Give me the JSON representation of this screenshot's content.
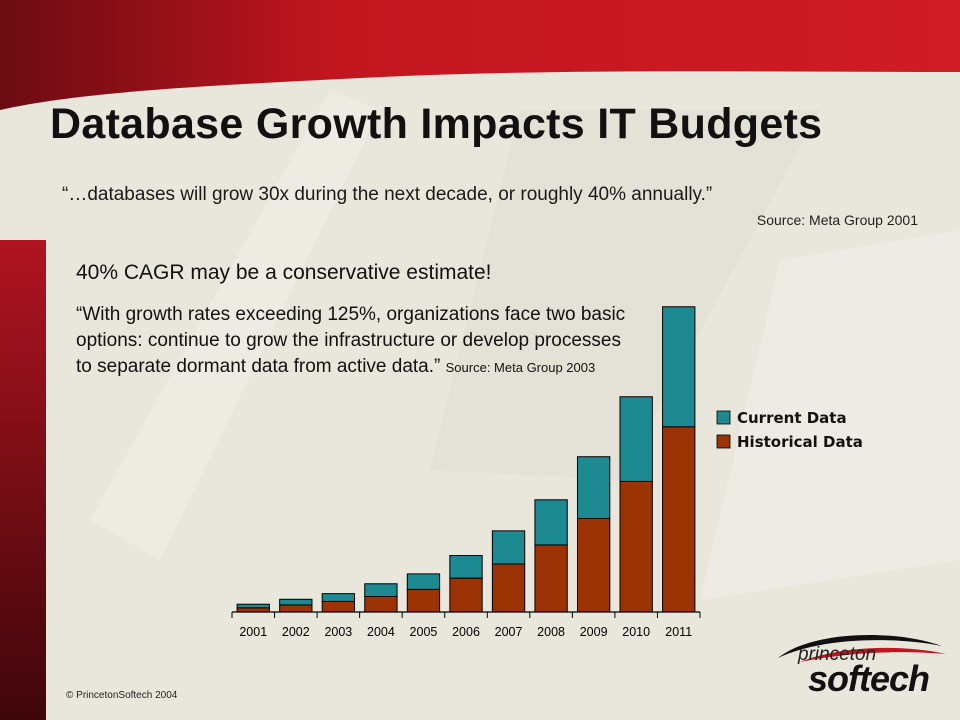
{
  "slide": {
    "title": "Database Growth Impacts IT Budgets",
    "quote1": "“…databases will grow 30x during the next decade, or roughly 40% annually.”",
    "source1": "Source: Meta Group 2001",
    "subhead": "40% CAGR may be a conservative estimate!",
    "quote2": "“With growth rates exceeding 125%, organizations face two basic options: continue to grow the infrastructure or develop processes to separate dormant data from active data.”",
    "source2": "Source: Meta Group 2003",
    "copyright": "© PrincetonSoftech 2004",
    "logo_top": "princeton",
    "logo_bottom": "softech"
  },
  "colors": {
    "band": "#c2161f",
    "band_dark": "#5e0a10",
    "current": "#1d8a91",
    "historical": "#9c3305"
  },
  "chart_data": {
    "type": "bar",
    "stacked": true,
    "categories": [
      "2001",
      "2002",
      "2003",
      "2004",
      "2005",
      "2006",
      "2007",
      "2008",
      "2009",
      "2010",
      "2011"
    ],
    "series": [
      {
        "name": "Historical Data",
        "color": "#9c3305",
        "values": [
          1.2,
          2.0,
          3.0,
          4.4,
          6.4,
          9.6,
          13.6,
          19.0,
          26.5,
          37.0,
          52.5
        ]
      },
      {
        "name": "Current Data",
        "color": "#1d8a91",
        "values": [
          1.0,
          1.6,
          2.2,
          3.6,
          4.4,
          6.4,
          9.4,
          12.8,
          17.5,
          24.0,
          34.0
        ]
      }
    ],
    "legend": [
      "Current Data",
      "Historical Data"
    ],
    "legend_position": "right",
    "ylim": [
      0,
      87
    ],
    "grid": false
  }
}
